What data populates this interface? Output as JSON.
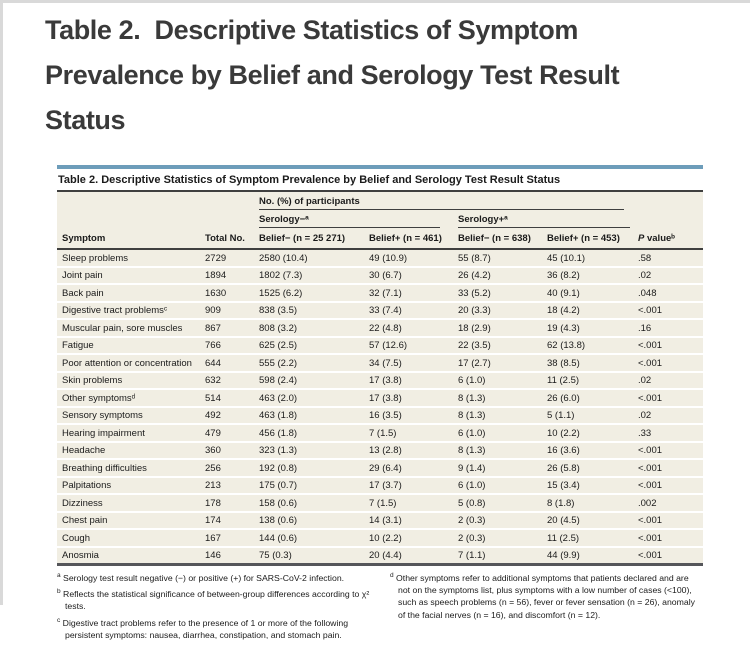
{
  "doc_title": {
    "lines": [
      "Table 2.  Descriptive Statistics of Symptom",
      "Prevalence by Belief and Serology Test Result",
      "Status"
    ]
  },
  "table": {
    "title": "Table 2. Descriptive Statistics of Symptom Prevalence by Belief and Serology Test Result Status",
    "group_header": "No. (%) of participants",
    "serology_neg": "Serology−ᵃ",
    "serology_pos": "Serology+ᵃ",
    "columns": {
      "symptom": "Symptom",
      "total": "Total No.",
      "neg_bneg": "Belief− (n = 25 271)",
      "neg_bpos": "Belief+ (n = 461)",
      "pos_bneg": "Belief− (n = 638)",
      "pos_bpos": "Belief+ (n = 453)",
      "p_italic": "P",
      "p_rest": " valueᵇ"
    },
    "rows": [
      {
        "symptom": "Sleep problems",
        "total": "2729",
        "neg_bneg": "2580 (10.4)",
        "neg_bpos": "49 (10.9)",
        "pos_bneg": "55 (8.7)",
        "pos_bpos": "45 (10.1)",
        "p": ".58"
      },
      {
        "symptom": "Joint pain",
        "total": "1894",
        "neg_bneg": "1802 (7.3)",
        "neg_bpos": "30 (6.7)",
        "pos_bneg": "26 (4.2)",
        "pos_bpos": "36 (8.2)",
        "p": ".02"
      },
      {
        "symptom": "Back pain",
        "total": "1630",
        "neg_bneg": "1525 (6.2)",
        "neg_bpos": "32 (7.1)",
        "pos_bneg": "33 (5.2)",
        "pos_bpos": "40 (9.1)",
        "p": ".048"
      },
      {
        "symptom": "Digestive tract problemsᶜ",
        "total": "909",
        "neg_bneg": "838 (3.5)",
        "neg_bpos": "33 (7.4)",
        "pos_bneg": "20 (3.3)",
        "pos_bpos": "18 (4.2)",
        "p": "<.001"
      },
      {
        "symptom": "Muscular pain, sore muscles",
        "total": "867",
        "neg_bneg": "808 (3.2)",
        "neg_bpos": "22 (4.8)",
        "pos_bneg": "18 (2.9)",
        "pos_bpos": "19 (4.3)",
        "p": ".16"
      },
      {
        "symptom": "Fatigue",
        "total": "766",
        "neg_bneg": "625 (2.5)",
        "neg_bpos": "57 (12.6)",
        "pos_bneg": "22 (3.5)",
        "pos_bpos": "62 (13.8)",
        "p": "<.001"
      },
      {
        "symptom": "Poor attention or concentration",
        "total": "644",
        "neg_bneg": "555 (2.2)",
        "neg_bpos": "34 (7.5)",
        "pos_bneg": "17 (2.7)",
        "pos_bpos": "38 (8.5)",
        "p": "<.001"
      },
      {
        "symptom": "Skin problems",
        "total": "632",
        "neg_bneg": "598 (2.4)",
        "neg_bpos": "17 (3.8)",
        "pos_bneg": "6 (1.0)",
        "pos_bpos": "11 (2.5)",
        "p": ".02"
      },
      {
        "symptom": "Other symptomsᵈ",
        "total": "514",
        "neg_bneg": "463 (2.0)",
        "neg_bpos": "17 (3.8)",
        "pos_bneg": "8 (1.3)",
        "pos_bpos": "26 (6.0)",
        "p": "<.001"
      },
      {
        "symptom": "Sensory symptoms",
        "total": "492",
        "neg_bneg": "463 (1.8)",
        "neg_bpos": "16 (3.5)",
        "pos_bneg": "8 (1.3)",
        "pos_bpos": "5 (1.1)",
        "p": ".02"
      },
      {
        "symptom": "Hearing impairment",
        "total": "479",
        "neg_bneg": "456 (1.8)",
        "neg_bpos": "7 (1.5)",
        "pos_bneg": "6 (1.0)",
        "pos_bpos": "10 (2.2)",
        "p": ".33"
      },
      {
        "symptom": "Headache",
        "total": "360",
        "neg_bneg": "323 (1.3)",
        "neg_bpos": "13 (2.8)",
        "pos_bneg": "8 (1.3)",
        "pos_bpos": "16 (3.6)",
        "p": "<.001"
      },
      {
        "symptom": "Breathing difficulties",
        "total": "256",
        "neg_bneg": "192 (0.8)",
        "neg_bpos": "29 (6.4)",
        "pos_bneg": "9 (1.4)",
        "pos_bpos": "26 (5.8)",
        "p": "<.001"
      },
      {
        "symptom": "Palpitations",
        "total": "213",
        "neg_bneg": "175 (0.7)",
        "neg_bpos": "17 (3.7)",
        "pos_bneg": "6 (1.0)",
        "pos_bpos": "15 (3.4)",
        "p": "<.001"
      },
      {
        "symptom": "Dizziness",
        "total": "178",
        "neg_bneg": "158 (0.6)",
        "neg_bpos": "7 (1.5)",
        "pos_bneg": "5 (0.8)",
        "pos_bpos": "8 (1.8)",
        "p": ".002"
      },
      {
        "symptom": "Chest pain",
        "total": "174",
        "neg_bneg": "138 (0.6)",
        "neg_bpos": "14 (3.1)",
        "pos_bneg": "2 (0.3)",
        "pos_bpos": "20 (4.5)",
        "p": "<.001"
      },
      {
        "symptom": "Cough",
        "total": "167",
        "neg_bneg": "144 (0.6)",
        "neg_bpos": "10 (2.2)",
        "pos_bneg": "2 (0.3)",
        "pos_bpos": "11 (2.5)",
        "p": "<.001"
      },
      {
        "symptom": "Anosmia",
        "total": "146",
        "neg_bneg": "75 (0.3)",
        "neg_bpos": "20 (4.4)",
        "pos_bneg": "7 (1.1)",
        "pos_bpos": "44 (9.9)",
        "p": "<.001"
      }
    ]
  },
  "footnotes": {
    "left": [
      {
        "marker": "a",
        "text": "Serology test result negative (−) or positive (+) for SARS-CoV-2 infection."
      },
      {
        "marker": "b",
        "text": "Reflects the statistical significance of between-group differences according to χ² tests."
      },
      {
        "marker": "c",
        "text": "Digestive tract problems refer to the presence of 1 or more of the following persistent symptoms: nausea, diarrhea, constipation, and stomach pain."
      }
    ],
    "right": [
      {
        "marker": "d",
        "text": "Other symptoms refer to additional symptoms that patients declared and are not on the symptoms list, plus symptoms with a low number of cases (<100), such as speech problems (n = 56), fever or fever sensation (n = 26), anomaly of the facial nerves (n = 16), and discomfort (n = 12)."
      }
    ]
  },
  "colors": {
    "accent_blue": "#6d9dba",
    "table_background": "#f1eee3",
    "rule_dark": "#3f3f3f",
    "title_text": "#3a3a3a"
  }
}
